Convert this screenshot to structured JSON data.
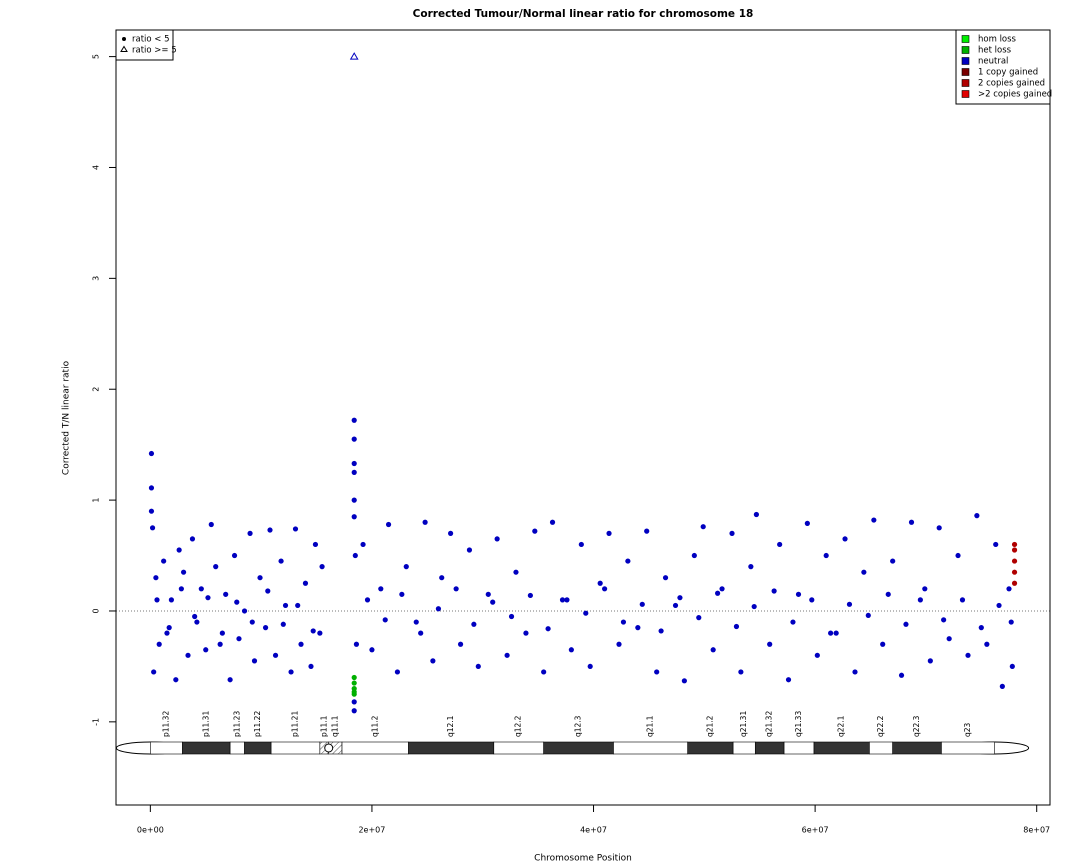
{
  "chart_data": {
    "type": "scatter",
    "title": "Corrected Tumour/Normal linear ratio for chromosome  18",
    "x_label": "Chromosome Position",
    "y_label": "Corrected T/N linear ratio",
    "xlim": [
      -3100000.0,
      81200000.0
    ],
    "ylim": [
      -1.75,
      5.24
    ],
    "xticks": [
      {
        "value": 0,
        "label": "0e+00"
      },
      {
        "value": 20000000.0,
        "label": "2e+07"
      },
      {
        "value": 40000000.0,
        "label": "4e+07"
      },
      {
        "value": 60000000.0,
        "label": "6e+07"
      },
      {
        "value": 80000000.0,
        "label": "8e+07"
      }
    ],
    "yticks": [
      -1,
      0,
      1,
      2,
      3,
      4,
      5
    ],
    "hline": 0,
    "legend": "top-right",
    "marker_legend": [
      "ratio < 5",
      "ratio >= 5"
    ],
    "series": [
      {
        "name": "hom loss",
        "color": "#00ee00",
        "x": [],
        "values": []
      },
      {
        "name": "het loss",
        "color": "#00b000",
        "x": [
          18400000.0,
          18400000.0,
          18400000.0,
          18400000.0,
          18400000.0
        ],
        "values": [
          -0.6,
          -0.65,
          -0.7,
          -0.73,
          -0.75
        ]
      },
      {
        "name": "neutral",
        "color": "#0000c0",
        "x": [
          100000.0,
          100000.0,
          100000.0,
          200000.0,
          300000.0,
          500000.0,
          800000.0,
          1200000.0,
          1500000.0,
          1900000.0,
          2300000.0,
          2600000.0,
          3000000.0,
          3400000.0,
          3800000.0,
          4200000.0,
          4600000.0,
          5000000.0,
          5500000.0,
          5900000.0,
          6300000.0,
          6800000.0,
          7200000.0,
          7600000.0,
          8000000.0,
          8500000.0,
          9000000.0,
          9400000.0,
          9900000.0,
          10400000.0,
          10800000.0,
          11300000.0,
          11800000.0,
          12200000.0,
          12700000.0,
          13100000.0,
          13600000.0,
          14000000.0,
          14500000.0,
          14900000.0,
          15300000.0,
          15500000.0,
          18400000.0,
          18400000.0,
          18400000.0,
          18400000.0,
          18400000.0,
          18400000.0,
          18400000.0,
          18400000.0,
          18500000.0,
          18600000.0,
          19200000.0,
          20000000.0,
          20800000.0,
          21500000.0,
          22300000.0,
          23100000.0,
          24000000.0,
          24800000.0,
          25500000.0,
          26300000.0,
          27100000.0,
          28000000.0,
          28800000.0,
          29600000.0,
          30500000.0,
          31300000.0,
          32200000.0,
          33000000.0,
          33900000.0,
          34700000.0,
          35500000.0,
          36300000.0,
          37200000.0,
          38000000.0,
          38900000.0,
          39700000.0,
          40600000.0,
          41400000.0,
          42300000.0,
          43100000.0,
          44000000.0,
          44800000.0,
          45700000.0,
          46500000.0,
          47400000.0,
          48200000.0,
          49100000.0,
          49900000.0,
          50800000.0,
          51600000.0,
          52500000.0,
          53300000.0,
          54200000.0,
          54700000.0,
          55900000.0,
          56800000.0,
          57600000.0,
          58500000.0,
          59300000.0,
          60200000.0,
          61000000.0,
          61900000.0,
          62700000.0,
          63600000.0,
          64400000.0,
          65300000.0,
          66100000.0,
          67000000.0,
          67800000.0,
          68700000.0,
          69500000.0,
          70400000.0,
          71200000.0,
          72100000.0,
          72900000.0,
          73800000.0,
          74600000.0,
          75500000.0,
          76300000.0,
          76900000.0,
          77500000.0,
          77800000.0,
          600000.0,
          1700000.0,
          2800000.0,
          4000000.0,
          5200000.0,
          6500000.0,
          7800000.0,
          9200000.0,
          10600000.0,
          12000000.0,
          13300000.0,
          14700000.0,
          19600000.0,
          21200000.0,
          22700000.0,
          24400000.0,
          26000000.0,
          27600000.0,
          29200000.0,
          30900000.0,
          32600000.0,
          34300000.0,
          35900000.0,
          37600000.0,
          39300000.0,
          41000000.0,
          42700000.0,
          44400000.0,
          46100000.0,
          47800000.0,
          49500000.0,
          51200000.0,
          52900000.0,
          54500000.0,
          56300000.0,
          58000000.0,
          59700000.0,
          61400000.0,
          63100000.0,
          64800000.0,
          66600000.0,
          68200000.0,
          69900000.0,
          71600000.0,
          73300000.0,
          75000000.0,
          76600000.0,
          77700000.0
        ],
        "values": [
          1.42,
          1.11,
          0.9,
          0.75,
          -0.55,
          0.3,
          -0.3,
          0.45,
          -0.2,
          0.1,
          -0.62,
          0.55,
          0.35,
          -0.4,
          0.65,
          -0.1,
          0.2,
          -0.35,
          0.78,
          0.4,
          -0.3,
          0.15,
          -0.62,
          0.5,
          -0.25,
          0.0,
          0.7,
          -0.45,
          0.3,
          -0.15,
          0.73,
          -0.4,
          0.45,
          0.05,
          -0.55,
          0.74,
          -0.3,
          0.25,
          -0.5,
          0.6,
          -0.2,
          0.4,
          1.72,
          1.55,
          1.33,
          1.25,
          1.0,
          0.85,
          -0.9,
          -0.82,
          0.5,
          -0.3,
          0.6,
          -0.35,
          0.2,
          0.78,
          -0.55,
          0.4,
          -0.1,
          0.8,
          -0.45,
          0.3,
          0.7,
          -0.3,
          0.55,
          -0.5,
          0.15,
          0.65,
          -0.4,
          0.35,
          -0.2,
          0.72,
          -0.55,
          0.8,
          0.1,
          -0.35,
          0.6,
          -0.5,
          0.25,
          0.7,
          -0.3,
          0.45,
          -0.15,
          0.72,
          -0.55,
          0.3,
          0.05,
          -0.63,
          0.5,
          0.76,
          -0.35,
          0.2,
          0.7,
          -0.55,
          0.4,
          0.87,
          -0.3,
          0.6,
          -0.62,
          0.15,
          0.79,
          -0.4,
          0.5,
          -0.2,
          0.65,
          -0.55,
          0.35,
          0.82,
          -0.3,
          0.45,
          -0.58,
          0.8,
          0.1,
          -0.45,
          0.75,
          -0.25,
          0.5,
          -0.4,
          0.86,
          -0.3,
          0.6,
          -0.68,
          0.2,
          -0.5,
          0.1,
          -0.15,
          0.2,
          -0.05,
          0.12,
          -0.2,
          0.08,
          -0.1,
          0.18,
          -0.12,
          0.05,
          -0.18,
          0.1,
          -0.08,
          0.15,
          -0.2,
          0.02,
          0.2,
          -0.12,
          0.08,
          -0.05,
          0.14,
          -0.16,
          0.1,
          -0.02,
          0.2,
          -0.1,
          0.06,
          -0.18,
          0.12,
          -0.06,
          0.16,
          -0.14,
          0.04,
          0.18,
          -0.1,
          0.1,
          -0.2,
          0.06,
          -0.04,
          0.15,
          -0.12,
          0.2,
          -0.08,
          0.1,
          -0.15,
          0.05,
          -0.1
        ]
      },
      {
        "name": "1 copy gained",
        "color": "#7a0000",
        "x": [],
        "values": []
      },
      {
        "name": "2 copies gained",
        "color": "#b00000",
        "x": [
          78000000.0,
          78000000.0,
          78000000.0,
          78000000.0,
          78000000.0
        ],
        "values": [
          0.25,
          0.35,
          0.45,
          0.55,
          0.6
        ]
      },
      {
        "name": ">2 copies gained",
        "color": "#e00000",
        "x": [],
        "values": []
      }
    ],
    "triangles": {
      "x": [
        18400000.0
      ],
      "values": [
        5
      ]
    },
    "ideogram": {
      "bands": [
        {
          "name": "p11.32",
          "start": 0,
          "end": 2900000.0,
          "stain": "gneg"
        },
        {
          "name": "p11.31",
          "start": 2900000.0,
          "end": 7200000.0,
          "stain": "gpos"
        },
        {
          "name": "p11.23",
          "start": 7200000.0,
          "end": 8500000.0,
          "stain": "gneg"
        },
        {
          "name": "p11.22",
          "start": 8500000.0,
          "end": 10900000.0,
          "stain": "gpos"
        },
        {
          "name": "p11.21",
          "start": 10900000.0,
          "end": 15300000.0,
          "stain": "gneg"
        },
        {
          "name": "p11.1",
          "start": 15300000.0,
          "end": 16100000.0,
          "stain": "acen"
        },
        {
          "name": "q11.1",
          "start": 16100000.0,
          "end": 17300000.0,
          "stain": "acen"
        },
        {
          "name": "q11.2",
          "start": 17300000.0,
          "end": 23300000.0,
          "stain": "gneg"
        },
        {
          "name": "q12.1",
          "start": 23300000.0,
          "end": 31000000.0,
          "stain": "gpos"
        },
        {
          "name": "q12.2",
          "start": 31000000.0,
          "end": 35500000.0,
          "stain": "gneg"
        },
        {
          "name": "q12.3",
          "start": 35500000.0,
          "end": 41800000.0,
          "stain": "gpos"
        },
        {
          "name": "q21.1",
          "start": 41800000.0,
          "end": 48500000.0,
          "stain": "gneg"
        },
        {
          "name": "q21.2",
          "start": 48500000.0,
          "end": 52600000.0,
          "stain": "gpos"
        },
        {
          "name": "q21.31",
          "start": 52600000.0,
          "end": 54600000.0,
          "stain": "gneg"
        },
        {
          "name": "q21.32",
          "start": 54600000.0,
          "end": 57200000.0,
          "stain": "gpos"
        },
        {
          "name": "q21.33",
          "start": 57200000.0,
          "end": 59900000.0,
          "stain": "gneg"
        },
        {
          "name": "q22.1",
          "start": 59900000.0,
          "end": 64900000.0,
          "stain": "gpos"
        },
        {
          "name": "q22.2",
          "start": 64900000.0,
          "end": 67000000.0,
          "stain": "gneg"
        },
        {
          "name": "q22.3",
          "start": 67000000.0,
          "end": 71400000.0,
          "stain": "gpos"
        },
        {
          "name": "q23",
          "start": 71400000.0,
          "end": 76200000.0,
          "stain": "gneg"
        }
      ]
    }
  }
}
